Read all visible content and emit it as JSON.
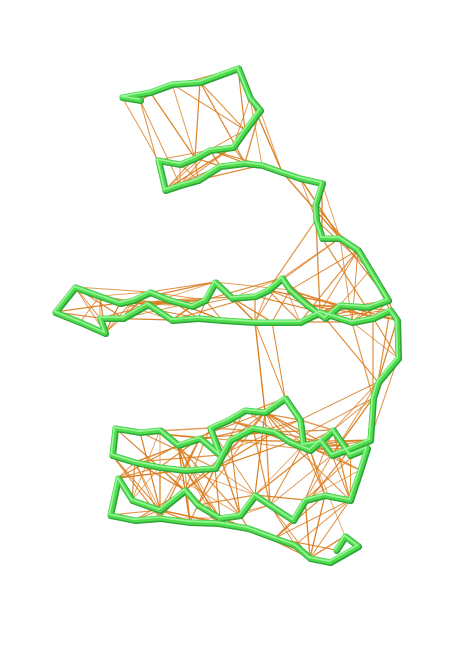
{
  "colors": {
    "background": "#ffffff",
    "backbone": "#4cdc4c",
    "backbone_highlight": "#9af59a",
    "backbone_shadow": "#2fa33a",
    "contacts": "#d97a1a"
  },
  "contacts_density": 0.2
}
